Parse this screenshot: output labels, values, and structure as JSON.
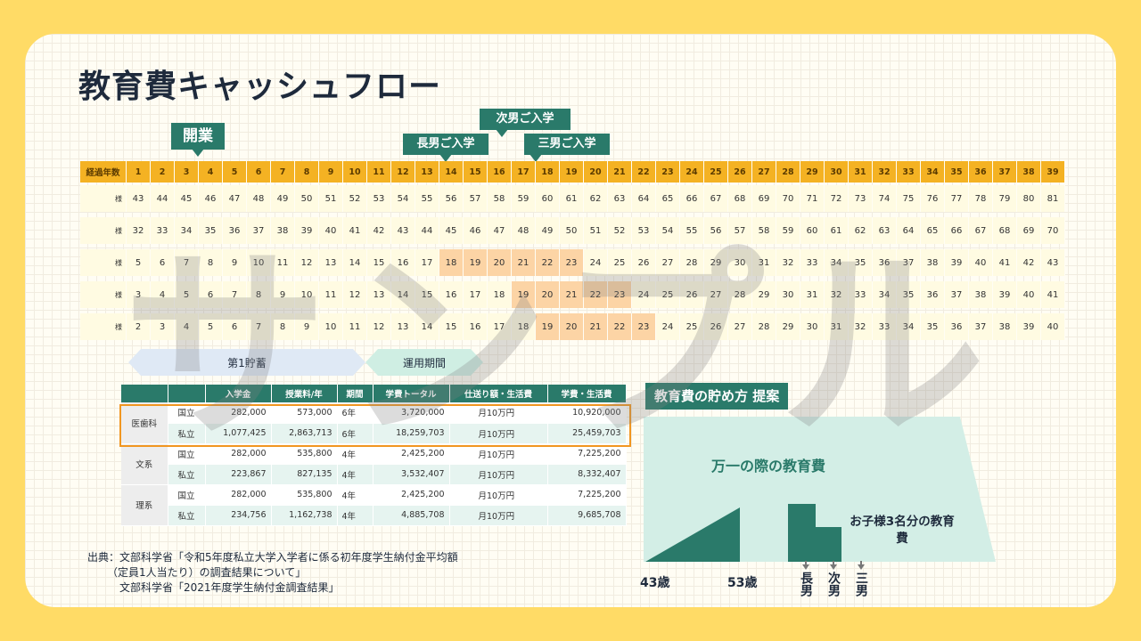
{
  "title": "教育費キャッシュフロー",
  "callouts": {
    "opening": "開業",
    "eldest": "長男ご入学",
    "second": "次男ご入学",
    "third": "三男ご入学"
  },
  "timeline": {
    "header_label": "経過年数",
    "years": [
      1,
      2,
      3,
      4,
      5,
      6,
      7,
      8,
      9,
      10,
      11,
      12,
      13,
      14,
      15,
      16,
      17,
      18,
      19,
      20,
      21,
      22,
      23,
      24,
      25,
      26,
      27,
      28,
      29,
      30,
      31,
      32,
      33,
      34,
      35,
      36,
      37,
      38,
      39
    ],
    "rows": [
      {
        "label": "様",
        "start": 43,
        "highlight_from": null,
        "highlight_to": null
      },
      {
        "label": "様",
        "start": 32,
        "highlight_from": null,
        "highlight_to": null
      },
      {
        "label": "様",
        "start": 5,
        "highlight_from": 14,
        "highlight_to": 19
      },
      {
        "label": "様",
        "start": 3,
        "highlight_from": 17,
        "highlight_to": 21
      },
      {
        "label": "様",
        "start": 2,
        "highlight_from": 18,
        "highlight_to": 22
      }
    ]
  },
  "bands": {
    "saving": "第1貯蓄",
    "investing": "運用期間"
  },
  "cost_table": {
    "headers": [
      "入学金",
      "授業料/年",
      "期間",
      "学費トータル",
      "仕送り額・生活費",
      "学費・生活費"
    ],
    "groups": [
      {
        "name": "医歯科",
        "rows": [
          {
            "type": "国立",
            "enroll": "282,000",
            "tuition": "573,000",
            "period": "6年",
            "total": "3,720,000",
            "living": "月10万円",
            "grand": "10,920,000"
          },
          {
            "type": "私立",
            "enroll": "1,077,425",
            "tuition": "2,863,713",
            "period": "6年",
            "total": "18,259,703",
            "living": "月10万円",
            "grand": "25,459,703"
          }
        ]
      },
      {
        "name": "文系",
        "rows": [
          {
            "type": "国立",
            "enroll": "282,000",
            "tuition": "535,800",
            "period": "4年",
            "total": "2,425,200",
            "living": "月10万円",
            "grand": "7,225,200"
          },
          {
            "type": "私立",
            "enroll": "223,867",
            "tuition": "827,135",
            "period": "4年",
            "total": "3,532,407",
            "living": "月10万円",
            "grand": "8,332,407"
          }
        ]
      },
      {
        "name": "理系",
        "rows": [
          {
            "type": "国立",
            "enroll": "282,000",
            "tuition": "535,800",
            "period": "4年",
            "total": "2,425,200",
            "living": "月10万円",
            "grand": "7,225,200"
          },
          {
            "type": "私立",
            "enroll": "234,756",
            "tuition": "1,162,738",
            "period": "4年",
            "total": "4,885,708",
            "living": "月10万円",
            "grand": "9,685,708"
          }
        ]
      }
    ]
  },
  "source": {
    "line1": "出典：文部科学省「令和5年度私立大学入学者に係る初年度学生納付金平均額",
    "line2": "（定員1人当たり）の調査結果について」",
    "line3": "文部科学省「2021年度学生納付金調査結果」"
  },
  "savings_plan": {
    "title": "教育費の貯め方 提案",
    "emergency": "万一の際の教育費",
    "children_cost": "お子様3名分の教育費",
    "age_start": "43歳",
    "age_end": "53歳",
    "kids": [
      "長男",
      "次男",
      "三男"
    ]
  },
  "watermark": "サンプル",
  "colors": {
    "background": "#ffdb66",
    "accent_green": "#2a7a6a",
    "header_orange": "#f4b223",
    "highlight_peach": "#fcd4a5",
    "box_orange": "#f19620"
  }
}
